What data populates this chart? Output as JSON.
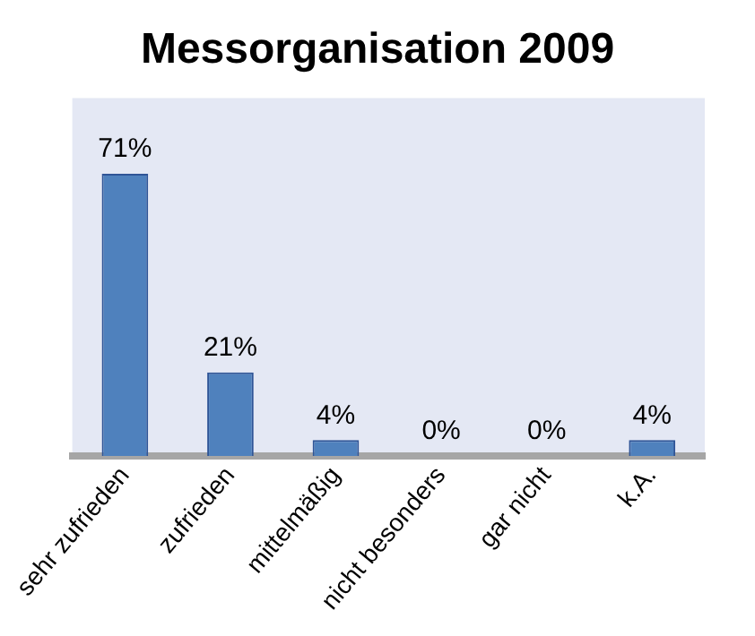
{
  "chart_data": {
    "type": "bar",
    "title": "Messorganisation 2009",
    "categories": [
      "sehr zufrieden",
      "zufrieden",
      "mittelmäßig",
      "nicht besonders",
      "gar nicht",
      "k.A."
    ],
    "values": [
      71,
      21,
      4,
      0,
      0,
      4
    ],
    "value_labels": [
      "71%",
      "21%",
      "4%",
      "0%",
      "0%",
      "4%"
    ],
    "color": "#4f81bd",
    "grid": false,
    "legend": false
  }
}
